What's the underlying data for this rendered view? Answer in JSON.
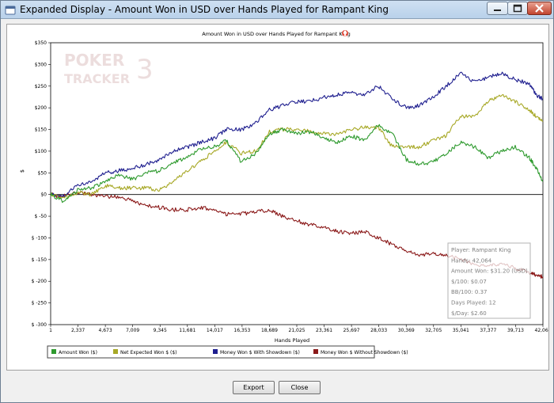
{
  "window": {
    "title": "Expanded Display - Amount Won in USD over Hands Played for Rampant King"
  },
  "buttons": {
    "export": "Export",
    "close": "Close"
  },
  "watermark": {
    "line1": "POKER",
    "line2": "TRACKER",
    "number": "3"
  },
  "tooltip": {
    "lines": [
      "Player: Rampant King",
      "Hands: 42,064",
      "Amount Won: $31.20 (USD)",
      "$/100: $0.07",
      "BB/100: 0.37",
      "Days Played: 12",
      "$/Day: $2.60"
    ]
  },
  "chart_data": {
    "type": "line",
    "title": "Amount Won in USD over Hands Played for Rampant King",
    "xlabel": "Hands Played",
    "ylabel": "$",
    "xlim": [
      1,
      42064
    ],
    "ylim": [
      -300,
      350
    ],
    "x_ticks": [
      "1",
      "2,337",
      "4,673",
      "7,009",
      "9,345",
      "11,681",
      "14,017",
      "16,353",
      "18,689",
      "21,025",
      "23,361",
      "25,697",
      "28,033",
      "30,369",
      "32,705",
      "35,041",
      "37,377",
      "39,713",
      "42,064"
    ],
    "y_ticks": [
      "$350",
      "$300",
      "$250",
      "$200",
      "$150",
      "$100",
      "$50",
      "$0",
      "$ -50",
      "$ -100",
      "$ -150",
      "$ -200",
      "$ -250",
      "$ -300"
    ],
    "y_tick_values": [
      350,
      300,
      250,
      200,
      150,
      100,
      50,
      0,
      -50,
      -100,
      -150,
      -200,
      -250,
      -300
    ],
    "legend_position": "bottom-left",
    "series": [
      {
        "name": "Amount Won ($)",
        "color": "#2e9a2e",
        "x": [
          1,
          1000,
          2300,
          3500,
          4700,
          5800,
          7000,
          8200,
          9300,
          10500,
          11700,
          12800,
          14000,
          15000,
          16300,
          17500,
          18700,
          19800,
          21000,
          22200,
          23400,
          24500,
          25700,
          26800,
          28000,
          29200,
          30400,
          31500,
          32700,
          33800,
          35000,
          36200,
          37400,
          38500,
          39700,
          40900,
          41500,
          42064
        ],
        "y": [
          0,
          -15,
          10,
          15,
          30,
          45,
          35,
          50,
          55,
          75,
          85,
          105,
          110,
          125,
          75,
          95,
          140,
          150,
          140,
          145,
          130,
          120,
          135,
          125,
          160,
          140,
          80,
          70,
          75,
          95,
          120,
          110,
          85,
          100,
          110,
          85,
          60,
          30
        ]
      },
      {
        "name": "Net Expected Won $ ($)",
        "color": "#a7a826",
        "x": [
          1,
          1000,
          2300,
          3500,
          4700,
          5800,
          7000,
          8200,
          9300,
          10500,
          11700,
          12800,
          14000,
          15000,
          16300,
          17500,
          18700,
          19800,
          21000,
          22200,
          23400,
          24500,
          25700,
          26800,
          28000,
          29200,
          30400,
          31500,
          32700,
          33800,
          35000,
          36200,
          37400,
          38500,
          39700,
          40900,
          41500,
          42064
        ],
        "y": [
          0,
          -10,
          5,
          0,
          20,
          15,
          15,
          15,
          10,
          30,
          55,
          75,
          100,
          120,
          95,
          100,
          145,
          150,
          150,
          145,
          140,
          140,
          150,
          155,
          155,
          110,
          110,
          110,
          125,
          135,
          180,
          180,
          215,
          230,
          215,
          195,
          180,
          170
        ]
      },
      {
        "name": "Money Won $ With Showdown ($)",
        "color": "#1f1f8f",
        "x": [
          1,
          1000,
          2300,
          3500,
          4700,
          5800,
          7000,
          8200,
          9300,
          10500,
          11700,
          12800,
          14000,
          15000,
          16300,
          17500,
          18700,
          19800,
          21000,
          22200,
          23400,
          24500,
          25700,
          26800,
          28000,
          29200,
          30400,
          31500,
          32700,
          33800,
          35000,
          36200,
          37400,
          38500,
          39700,
          40900,
          41500,
          42064
        ],
        "y": [
          0,
          -5,
          20,
          30,
          50,
          55,
          60,
          70,
          80,
          100,
          110,
          120,
          130,
          150,
          150,
          165,
          195,
          205,
          215,
          215,
          225,
          230,
          235,
          230,
          250,
          220,
          200,
          205,
          225,
          250,
          280,
          260,
          270,
          280,
          265,
          255,
          230,
          220
        ]
      },
      {
        "name": "Money Won $ Without Showdown ($)",
        "color": "#8b1a1a",
        "x": [
          1,
          1000,
          2300,
          3500,
          4700,
          5800,
          7000,
          8200,
          9300,
          10500,
          11700,
          12800,
          14000,
          15000,
          16300,
          17500,
          18700,
          19800,
          21000,
          22200,
          23400,
          24500,
          25700,
          26800,
          28000,
          29200,
          30400,
          31500,
          32700,
          33800,
          35000,
          36200,
          37400,
          38500,
          39700,
          40900,
          41500,
          42064
        ],
        "y": [
          0,
          -5,
          5,
          0,
          -5,
          -5,
          -15,
          -25,
          -30,
          -35,
          -35,
          -30,
          -35,
          -45,
          -45,
          -40,
          -35,
          -50,
          -60,
          -70,
          -75,
          -85,
          -90,
          -85,
          -100,
          -115,
          -130,
          -140,
          -135,
          -140,
          -150,
          -160,
          -165,
          -160,
          -170,
          -180,
          -185,
          -190
        ]
      }
    ]
  }
}
